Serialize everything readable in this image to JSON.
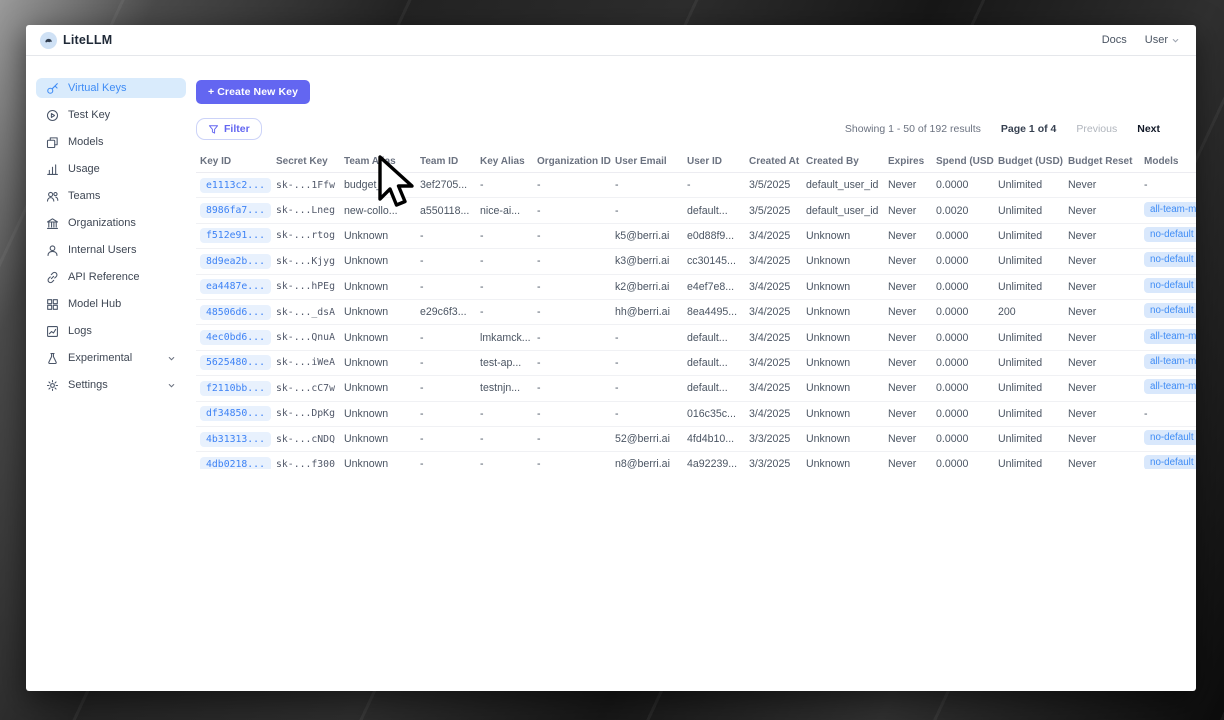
{
  "topbar": {
    "brand": "LiteLLM",
    "docs_link": "Docs",
    "user_menu": "User"
  },
  "sidebar": {
    "items": [
      {
        "label": "Virtual Keys",
        "icon": "key-icon",
        "active": true,
        "expandable": false
      },
      {
        "label": "Test Key",
        "icon": "play-circle-icon",
        "active": false,
        "expandable": false
      },
      {
        "label": "Models",
        "icon": "models-icon",
        "active": false,
        "expandable": false
      },
      {
        "label": "Usage",
        "icon": "bar-chart-icon",
        "active": false,
        "expandable": false
      },
      {
        "label": "Teams",
        "icon": "teams-icon",
        "active": false,
        "expandable": false
      },
      {
        "label": "Organizations",
        "icon": "bank-icon",
        "active": false,
        "expandable": false
      },
      {
        "label": "Internal Users",
        "icon": "user-icon",
        "active": false,
        "expandable": false
      },
      {
        "label": "API Reference",
        "icon": "link-icon",
        "active": false,
        "expandable": false
      },
      {
        "label": "Model Hub",
        "icon": "grid-icon",
        "active": false,
        "expandable": false
      },
      {
        "label": "Logs",
        "icon": "line-chart-icon",
        "active": false,
        "expandable": false
      },
      {
        "label": "Experimental",
        "icon": "flask-icon",
        "active": false,
        "expandable": true
      },
      {
        "label": "Settings",
        "icon": "gear-icon",
        "active": false,
        "expandable": true
      }
    ]
  },
  "main": {
    "create_button_label": "+ Create New Key",
    "filter_button_label": "Filter",
    "pagination": {
      "showing_text": "Showing 1 - 50 of 192 results",
      "page_text": "Page 1 of 4",
      "previous_label": "Previous",
      "next_label": "Next"
    },
    "table": {
      "columns": [
        "Key ID",
        "Secret Key",
        "Team Alias",
        "Team ID",
        "Key Alias",
        "Organization ID",
        "User Email",
        "User ID",
        "Created At",
        "Created By",
        "Expires",
        "Spend (USD)",
        "Budget (USD)",
        "Budget Reset",
        "Models"
      ],
      "rows": [
        [
          "e1113c2...",
          "sk-...1Ffw",
          "budget_te...",
          "3ef2705...",
          "-",
          "-",
          "-",
          "-",
          "3/5/2025",
          "default_user_id",
          "Never",
          "0.0000",
          "Unlimited",
          "Never",
          "-"
        ],
        [
          "8986fa7...",
          "sk-...Lneg",
          "new-collo...",
          "a550118...",
          "nice-ai...",
          "-",
          "-",
          "default...",
          "3/5/2025",
          "default_user_id",
          "Never",
          "0.0020",
          "Unlimited",
          "Never",
          "all-team-m"
        ],
        [
          "f512e91...",
          "sk-...rtog",
          "Unknown",
          "-",
          "-",
          "-",
          "k5@berri.ai",
          "e0d88f9...",
          "3/4/2025",
          "Unknown",
          "Never",
          "0.0000",
          "Unlimited",
          "Never",
          "no-default"
        ],
        [
          "8d9ea2b...",
          "sk-...Kjyg",
          "Unknown",
          "-",
          "-",
          "-",
          "k3@berri.ai",
          "cc30145...",
          "3/4/2025",
          "Unknown",
          "Never",
          "0.0000",
          "Unlimited",
          "Never",
          "no-default"
        ],
        [
          "ea4487e...",
          "sk-...hPEg",
          "Unknown",
          "-",
          "-",
          "-",
          "k2@berri.ai",
          "e4ef7e8...",
          "3/4/2025",
          "Unknown",
          "Never",
          "0.0000",
          "Unlimited",
          "Never",
          "no-default"
        ],
        [
          "48506d6...",
          "sk-..._dsA",
          "Unknown",
          "e29c6f3...",
          "-",
          "-",
          "hh@berri.ai",
          "8ea4495...",
          "3/4/2025",
          "Unknown",
          "Never",
          "0.0000",
          "200",
          "Never",
          "no-default"
        ],
        [
          "4ec0bd6...",
          "sk-...QnuA",
          "Unknown",
          "-",
          "lmkamck...",
          "-",
          "-",
          "default...",
          "3/4/2025",
          "Unknown",
          "Never",
          "0.0000",
          "Unlimited",
          "Never",
          "all-team-m"
        ],
        [
          "5625480...",
          "sk-...iWeA",
          "Unknown",
          "-",
          "test-ap...",
          "-",
          "-",
          "default...",
          "3/4/2025",
          "Unknown",
          "Never",
          "0.0000",
          "Unlimited",
          "Never",
          "all-team-m"
        ],
        [
          "f2110bb...",
          "sk-...cC7w",
          "Unknown",
          "-",
          "testnjn...",
          "-",
          "-",
          "default...",
          "3/4/2025",
          "Unknown",
          "Never",
          "0.0000",
          "Unlimited",
          "Never",
          "all-team-m"
        ],
        [
          "df34850...",
          "sk-...DpKg",
          "Unknown",
          "-",
          "-",
          "-",
          "-",
          "016c35c...",
          "3/4/2025",
          "Unknown",
          "Never",
          "0.0000",
          "Unlimited",
          "Never",
          "-"
        ],
        [
          "4b31313...",
          "sk-...cNDQ",
          "Unknown",
          "-",
          "-",
          "-",
          "52@berri.ai",
          "4fd4b10...",
          "3/3/2025",
          "Unknown",
          "Never",
          "0.0000",
          "Unlimited",
          "Never",
          "no-default"
        ],
        [
          "4db0218...",
          "sk-...f300",
          "Unknown",
          "-",
          "-",
          "-",
          "n8@berri.ai",
          "4a92239...",
          "3/3/2025",
          "Unknown",
          "Never",
          "0.0000",
          "Unlimited",
          "Never",
          "no-default"
        ]
      ]
    }
  },
  "colors": {
    "accent": "#6366f1",
    "active_item_bg": "#d9ebfc",
    "active_item_text": "#3f8cf5",
    "key_badge_bg": "#e8f1fd",
    "key_badge_text": "#3d82f5",
    "model_badge_bg": "#d9e8fc",
    "model_badge_text": "#3f8cf5"
  }
}
